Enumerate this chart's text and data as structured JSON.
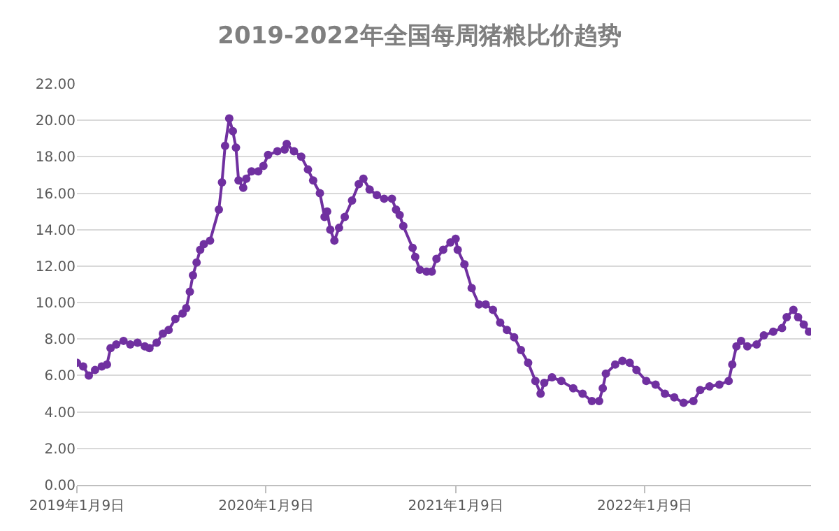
{
  "chart_data": {
    "type": "line",
    "title": "2019-2022年全国每周猪粮比价趋势",
    "x": [
      "2019-01-09",
      "2019-01-21",
      "2019-02-01",
      "2019-02-13",
      "2019-02-26",
      "2019-03-08",
      "2019-03-15",
      "2019-03-26",
      "2019-04-09",
      "2019-04-22",
      "2019-05-06",
      "2019-05-20",
      "2019-05-29",
      "2019-06-12",
      "2019-06-24",
      "2019-07-05",
      "2019-07-18",
      "2019-08-01",
      "2019-08-08",
      "2019-08-15",
      "2019-08-21",
      "2019-08-28",
      "2019-09-04",
      "2019-09-11",
      "2019-09-23",
      "2019-10-10",
      "2019-10-16",
      "2019-10-22",
      "2019-10-30",
      "2019-11-06",
      "2019-11-12",
      "2019-11-17",
      "2019-11-26",
      "2019-12-02",
      "2019-12-12",
      "2019-12-25",
      "2020-01-04",
      "2020-01-13",
      "2020-01-31",
      "2020-02-14",
      "2020-02-18",
      "2020-03-03",
      "2020-03-17",
      "2020-03-30",
      "2020-04-09",
      "2020-04-22",
      "2020-05-01",
      "2020-05-06",
      "2020-05-12",
      "2020-05-20",
      "2020-05-29",
      "2020-06-09",
      "2020-06-23",
      "2020-07-06",
      "2020-07-15",
      "2020-07-27",
      "2020-08-10",
      "2020-08-24",
      "2020-09-08",
      "2020-09-16",
      "2020-09-23",
      "2020-09-30",
      "2020-10-18",
      "2020-10-23",
      "2020-11-01",
      "2020-11-14",
      "2020-11-24",
      "2020-12-03",
      "2020-12-16",
      "2020-12-30",
      "2021-01-09",
      "2021-01-13",
      "2021-01-26",
      "2021-02-09",
      "2021-02-23",
      "2021-03-08",
      "2021-03-22",
      "2021-04-05",
      "2021-04-18",
      "2021-05-02",
      "2021-05-15",
      "2021-05-29",
      "2021-06-12",
      "2021-06-22",
      "2021-06-29",
      "2021-07-14",
      "2021-08-01",
      "2021-08-24",
      "2021-09-11",
      "2021-09-29",
      "2021-10-13",
      "2021-10-20",
      "2021-10-26",
      "2021-11-13",
      "2021-11-27",
      "2021-12-11",
      "2021-12-24",
      "2022-01-12",
      "2022-01-30",
      "2022-02-17",
      "2022-03-07",
      "2022-03-25",
      "2022-04-13",
      "2022-04-26",
      "2022-05-14",
      "2022-06-02",
      "2022-06-20",
      "2022-06-27",
      "2022-07-05",
      "2022-07-14",
      "2022-07-26",
      "2022-08-13",
      "2022-08-27",
      "2022-09-14",
      "2022-10-01",
      "2022-10-10",
      "2022-10-23",
      "2022-11-01",
      "2022-11-12",
      "2022-11-22"
    ],
    "series": [
      {
        "color": "#7030a0",
        "values": [
          6.7,
          6.5,
          6.0,
          6.3,
          6.5,
          6.6,
          7.5,
          7.7,
          7.9,
          7.7,
          7.8,
          7.6,
          7.5,
          7.8,
          8.3,
          8.5,
          9.1,
          9.4,
          9.7,
          10.6,
          11.5,
          12.2,
          12.9,
          13.2,
          13.4,
          15.1,
          16.6,
          18.6,
          20.1,
          19.4,
          18.5,
          16.7,
          16.3,
          16.8,
          17.2,
          17.2,
          17.5,
          18.1,
          18.3,
          18.4,
          18.7,
          18.3,
          18.0,
          17.3,
          16.7,
          16.0,
          14.7,
          15.0,
          14.0,
          13.4,
          14.1,
          14.7,
          15.6,
          16.5,
          16.8,
          16.2,
          15.9,
          15.7,
          15.7,
          15.1,
          14.8,
          14.2,
          13.0,
          12.5,
          11.8,
          11.7,
          11.7,
          12.4,
          12.9,
          13.3,
          13.5,
          12.9,
          12.1,
          10.8,
          9.9,
          9.9,
          9.6,
          8.9,
          8.5,
          8.1,
          7.4,
          6.7,
          5.7,
          5.0,
          5.6,
          5.9,
          5.7,
          5.3,
          5.0,
          4.6,
          4.6,
          5.3,
          6.1,
          6.6,
          6.8,
          6.7,
          6.3,
          5.7,
          5.5,
          5.0,
          4.8,
          4.5,
          4.6,
          5.2,
          5.4,
          5.5,
          5.7,
          6.6,
          7.6,
          7.9,
          7.6,
          7.7,
          8.2,
          8.4,
          8.6,
          9.2,
          9.6,
          9.2,
          8.8,
          8.4
        ]
      }
    ],
    "xlim": [
      "2019-01-09",
      "2022-11-26"
    ],
    "xticks": [
      {
        "value": "2019-01-09",
        "label": "2019年1月9日"
      },
      {
        "value": "2020-01-09",
        "label": "2020年1月9日"
      },
      {
        "value": "2021-01-09",
        "label": "2021年1月9日"
      },
      {
        "value": "2022-01-09",
        "label": "2022年1月9日"
      }
    ],
    "ylim": [
      0,
      22
    ],
    "yticks": [
      {
        "value": 0,
        "label": "0.00"
      },
      {
        "value": 2,
        "label": "2.00"
      },
      {
        "value": 4,
        "label": "4.00"
      },
      {
        "value": 6,
        "label": "6.00"
      },
      {
        "value": 8,
        "label": "8.00"
      },
      {
        "value": 10,
        "label": "10.00"
      },
      {
        "value": 12,
        "label": "12.00"
      },
      {
        "value": 14,
        "label": "14.00"
      },
      {
        "value": 16,
        "label": "16.00"
      },
      {
        "value": 18,
        "label": "18.00"
      },
      {
        "value": 20,
        "label": "20.00"
      },
      {
        "value": 22,
        "label": "22.00"
      }
    ],
    "grid": "y",
    "marker": "circle",
    "line_style": "solid"
  }
}
